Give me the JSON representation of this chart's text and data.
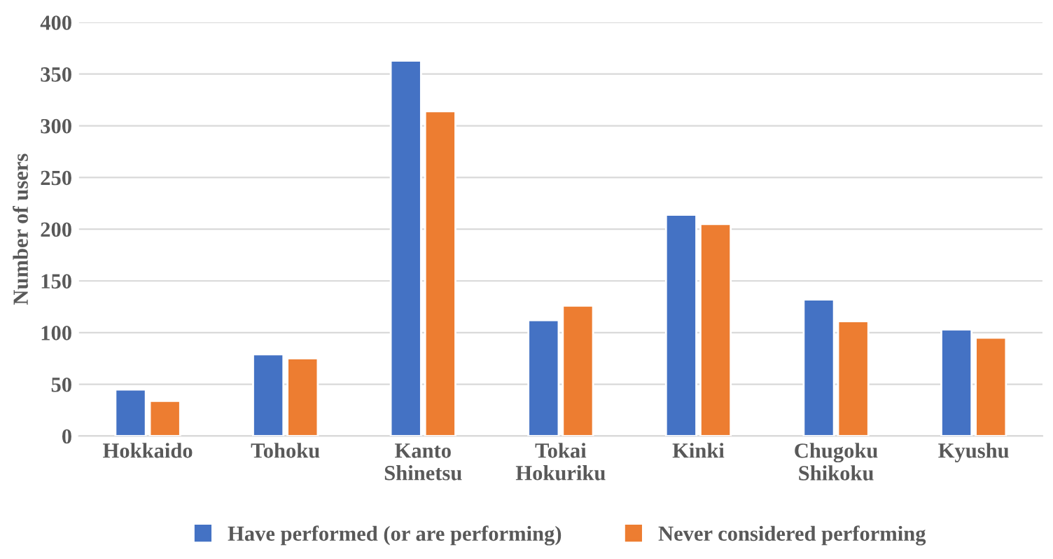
{
  "chart_data": {
    "type": "bar",
    "ylabel": "Number of users",
    "categories": [
      "Hokkaido",
      "Tohoku",
      "Kanto\nShinetsu",
      "Tokai\nHokuriku",
      "Kinki",
      "Chugoku\nShikoku",
      "Kyushu"
    ],
    "series": [
      {
        "name": "Have performed (or are performing)",
        "color": "#4472c4",
        "values": [
          45,
          79,
          363,
          112,
          214,
          132,
          103
        ]
      },
      {
        "name": "Never considered performing",
        "color": "#ed7d31",
        "values": [
          34,
          75,
          314,
          126,
          205,
          111,
          95
        ]
      }
    ],
    "ylim": [
      0,
      400
    ],
    "yticks": [
      0,
      50,
      100,
      150,
      200,
      250,
      300,
      350,
      400
    ],
    "grid": "y",
    "legend": "bottom"
  }
}
